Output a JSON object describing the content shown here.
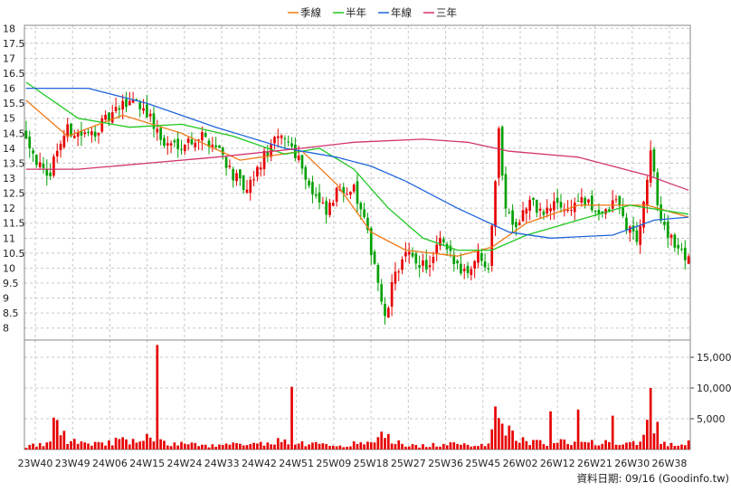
{
  "chart_data": {
    "type": "candlestick",
    "legend": [
      {
        "label": "季線",
        "color": "#f07a14"
      },
      {
        "label": "半年",
        "color": "#1fc81f"
      },
      {
        "label": "年線",
        "color": "#1e64dc"
      },
      {
        "label": "三年",
        "color": "#d2326e"
      }
    ],
    "legend_position": "top-center",
    "grid": true,
    "colors": {
      "up": "#e60000",
      "down": "#00a000",
      "volume": "#e60000"
    },
    "price_axis": {
      "ylim": [
        7.6,
        18.1
      ],
      "ticks": [
        "18",
        "17.5",
        "17",
        "16.5",
        "16",
        "15.5",
        "15",
        "14.5",
        "14",
        "13.5",
        "13",
        "12.5",
        "12",
        "11.5",
        "11",
        "10.5",
        "10",
        "9.5",
        "9",
        "8.5",
        "8"
      ]
    },
    "volume_axis": {
      "ylim": [
        0,
        17800
      ],
      "ticks": [
        "15,000",
        "10,000",
        "5,000"
      ]
    },
    "x_labels": [
      "23W40",
      "23W49",
      "24W06",
      "24W15",
      "24W24",
      "24W33",
      "24W42",
      "24W51",
      "25W09",
      "25W18",
      "25W27",
      "25W36",
      "25W45",
      "26W02",
      "26W12",
      "26W21",
      "26W30",
      "26W38"
    ],
    "footer_text": "資料日期: 09/16  (Goodinfo.tw)",
    "anchors": [
      {
        "t": 0,
        "p": 14.5,
        "v": 500
      },
      {
        "t": 3,
        "p": 13.6,
        "v": 700
      },
      {
        "t": 6,
        "p": 12.9,
        "v": 800
      },
      {
        "t": 9,
        "p": 14.0,
        "v": 4800
      },
      {
        "t": 12,
        "p": 14.6,
        "v": 1500
      },
      {
        "t": 18,
        "p": 14.4,
        "v": 1200
      },
      {
        "t": 22,
        "p": 14.8,
        "v": 900
      },
      {
        "t": 27,
        "p": 15.3,
        "v": 1500
      },
      {
        "t": 31,
        "p": 15.7,
        "v": 1200
      },
      {
        "t": 35,
        "p": 15.2,
        "v": 2000
      },
      {
        "t": 40,
        "p": 14.1,
        "v": 1000
      },
      {
        "t": 46,
        "p": 14.2,
        "v": 900
      },
      {
        "t": 51,
        "p": 14.4,
        "v": 700
      },
      {
        "t": 56,
        "p": 14.0,
        "v": 600
      },
      {
        "t": 60,
        "p": 13.1,
        "v": 900
      },
      {
        "t": 64,
        "p": 12.5,
        "v": 600
      },
      {
        "t": 68,
        "p": 13.5,
        "v": 900
      },
      {
        "t": 71,
        "p": 14.1,
        "v": 1500
      },
      {
        "t": 75,
        "p": 14.4,
        "v": 1200
      },
      {
        "t": 79,
        "p": 13.7,
        "v": 1100
      },
      {
        "t": 83,
        "p": 12.5,
        "v": 900
      },
      {
        "t": 87,
        "p": 11.8,
        "v": 700
      },
      {
        "t": 91,
        "p": 12.7,
        "v": 700
      },
      {
        "t": 95,
        "p": 12.6,
        "v": 900
      },
      {
        "t": 98,
        "p": 11.5,
        "v": 1000
      },
      {
        "t": 101,
        "p": 10.2,
        "v": 1400
      },
      {
        "t": 104,
        "p": 8.2,
        "v": 2500
      },
      {
        "t": 107,
        "p": 9.9,
        "v": 1200
      },
      {
        "t": 110,
        "p": 10.4,
        "v": 700
      },
      {
        "t": 114,
        "p": 10.2,
        "v": 600
      },
      {
        "t": 117,
        "p": 10.0,
        "v": 700
      },
      {
        "t": 120,
        "p": 10.9,
        "v": 800
      },
      {
        "t": 124,
        "p": 10.2,
        "v": 800
      },
      {
        "t": 128,
        "p": 9.9,
        "v": 700
      },
      {
        "t": 131,
        "p": 10.5,
        "v": 900
      },
      {
        "t": 134,
        "p": 10.1,
        "v": 1000
      },
      {
        "t": 137,
        "p": 14.5,
        "v": 7200
      },
      {
        "t": 139,
        "p": 12.0,
        "v": 3500
      },
      {
        "t": 142,
        "p": 11.5,
        "v": 1800
      },
      {
        "t": 146,
        "p": 12.2,
        "v": 1200
      },
      {
        "t": 150,
        "p": 11.8,
        "v": 1000
      },
      {
        "t": 154,
        "p": 12.2,
        "v": 1600
      },
      {
        "t": 157,
        "p": 11.9,
        "v": 1200
      },
      {
        "t": 160,
        "p": 12.3,
        "v": 1000
      },
      {
        "t": 164,
        "p": 12.0,
        "v": 1100
      },
      {
        "t": 168,
        "p": 11.8,
        "v": 1500
      },
      {
        "t": 171,
        "p": 12.3,
        "v": 1000
      },
      {
        "t": 174,
        "p": 11.4,
        "v": 1200
      },
      {
        "t": 177,
        "p": 11.0,
        "v": 1300
      },
      {
        "t": 179,
        "p": 12.0,
        "v": 2500
      },
      {
        "t": 181,
        "p": 14.0,
        "v": 4500
      },
      {
        "t": 183,
        "p": 12.0,
        "v": 2000
      },
      {
        "t": 186,
        "p": 11.2,
        "v": 1000
      },
      {
        "t": 189,
        "p": 10.6,
        "v": 700
      },
      {
        "t": 191,
        "p": 10.4,
        "v": 1000
      }
    ],
    "spikes": [
      {
        "t": 38,
        "v": 17000
      },
      {
        "t": 77,
        "v": 10200
      },
      {
        "t": 136,
        "v": 7000
      },
      {
        "t": 152,
        "v": 6200
      },
      {
        "t": 160,
        "v": 6500
      },
      {
        "t": 170,
        "v": 5500
      },
      {
        "t": 181,
        "v": 10000
      },
      {
        "t": 183,
        "v": 4500
      }
    ],
    "ma": [
      {
        "name": "季線",
        "points": [
          [
            0,
            15.6
          ],
          [
            12,
            14.4
          ],
          [
            28,
            15.1
          ],
          [
            45,
            14.5
          ],
          [
            62,
            13.6
          ],
          [
            80,
            13.9
          ],
          [
            90,
            12.8
          ],
          [
            100,
            11.2
          ],
          [
            110,
            10.6
          ],
          [
            125,
            10.4
          ],
          [
            135,
            10.7
          ],
          [
            145,
            11.5
          ],
          [
            160,
            12.1
          ],
          [
            180,
            12.1
          ],
          [
            192,
            11.7
          ]
        ]
      },
      {
        "name": "半年",
        "points": [
          [
            0,
            16.2
          ],
          [
            15,
            15.0
          ],
          [
            30,
            14.7
          ],
          [
            45,
            14.8
          ],
          [
            60,
            14.4
          ],
          [
            75,
            13.8
          ],
          [
            85,
            14.0
          ],
          [
            95,
            13.3
          ],
          [
            105,
            12.0
          ],
          [
            115,
            11.0
          ],
          [
            125,
            10.6
          ],
          [
            135,
            10.6
          ],
          [
            145,
            11.1
          ],
          [
            160,
            11.6
          ],
          [
            175,
            12.1
          ],
          [
            192,
            11.8
          ]
        ]
      },
      {
        "name": "年線",
        "points": [
          [
            0,
            16.0
          ],
          [
            18,
            16.0
          ],
          [
            35,
            15.5
          ],
          [
            55,
            14.7
          ],
          [
            75,
            14.0
          ],
          [
            90,
            13.7
          ],
          [
            100,
            13.4
          ],
          [
            110,
            12.9
          ],
          [
            125,
            12.0
          ],
          [
            140,
            11.2
          ],
          [
            152,
            11.0
          ],
          [
            170,
            11.1
          ],
          [
            182,
            11.6
          ],
          [
            192,
            11.7
          ]
        ]
      },
      {
        "name": "三年",
        "points": [
          [
            0,
            13.3
          ],
          [
            15,
            13.3
          ],
          [
            35,
            13.5
          ],
          [
            55,
            13.7
          ],
          [
            80,
            14.0
          ],
          [
            95,
            14.2
          ],
          [
            115,
            14.3
          ],
          [
            128,
            14.2
          ],
          [
            140,
            13.9
          ],
          [
            160,
            13.7
          ],
          [
            180,
            13.1
          ],
          [
            192,
            12.6
          ]
        ]
      }
    ]
  }
}
